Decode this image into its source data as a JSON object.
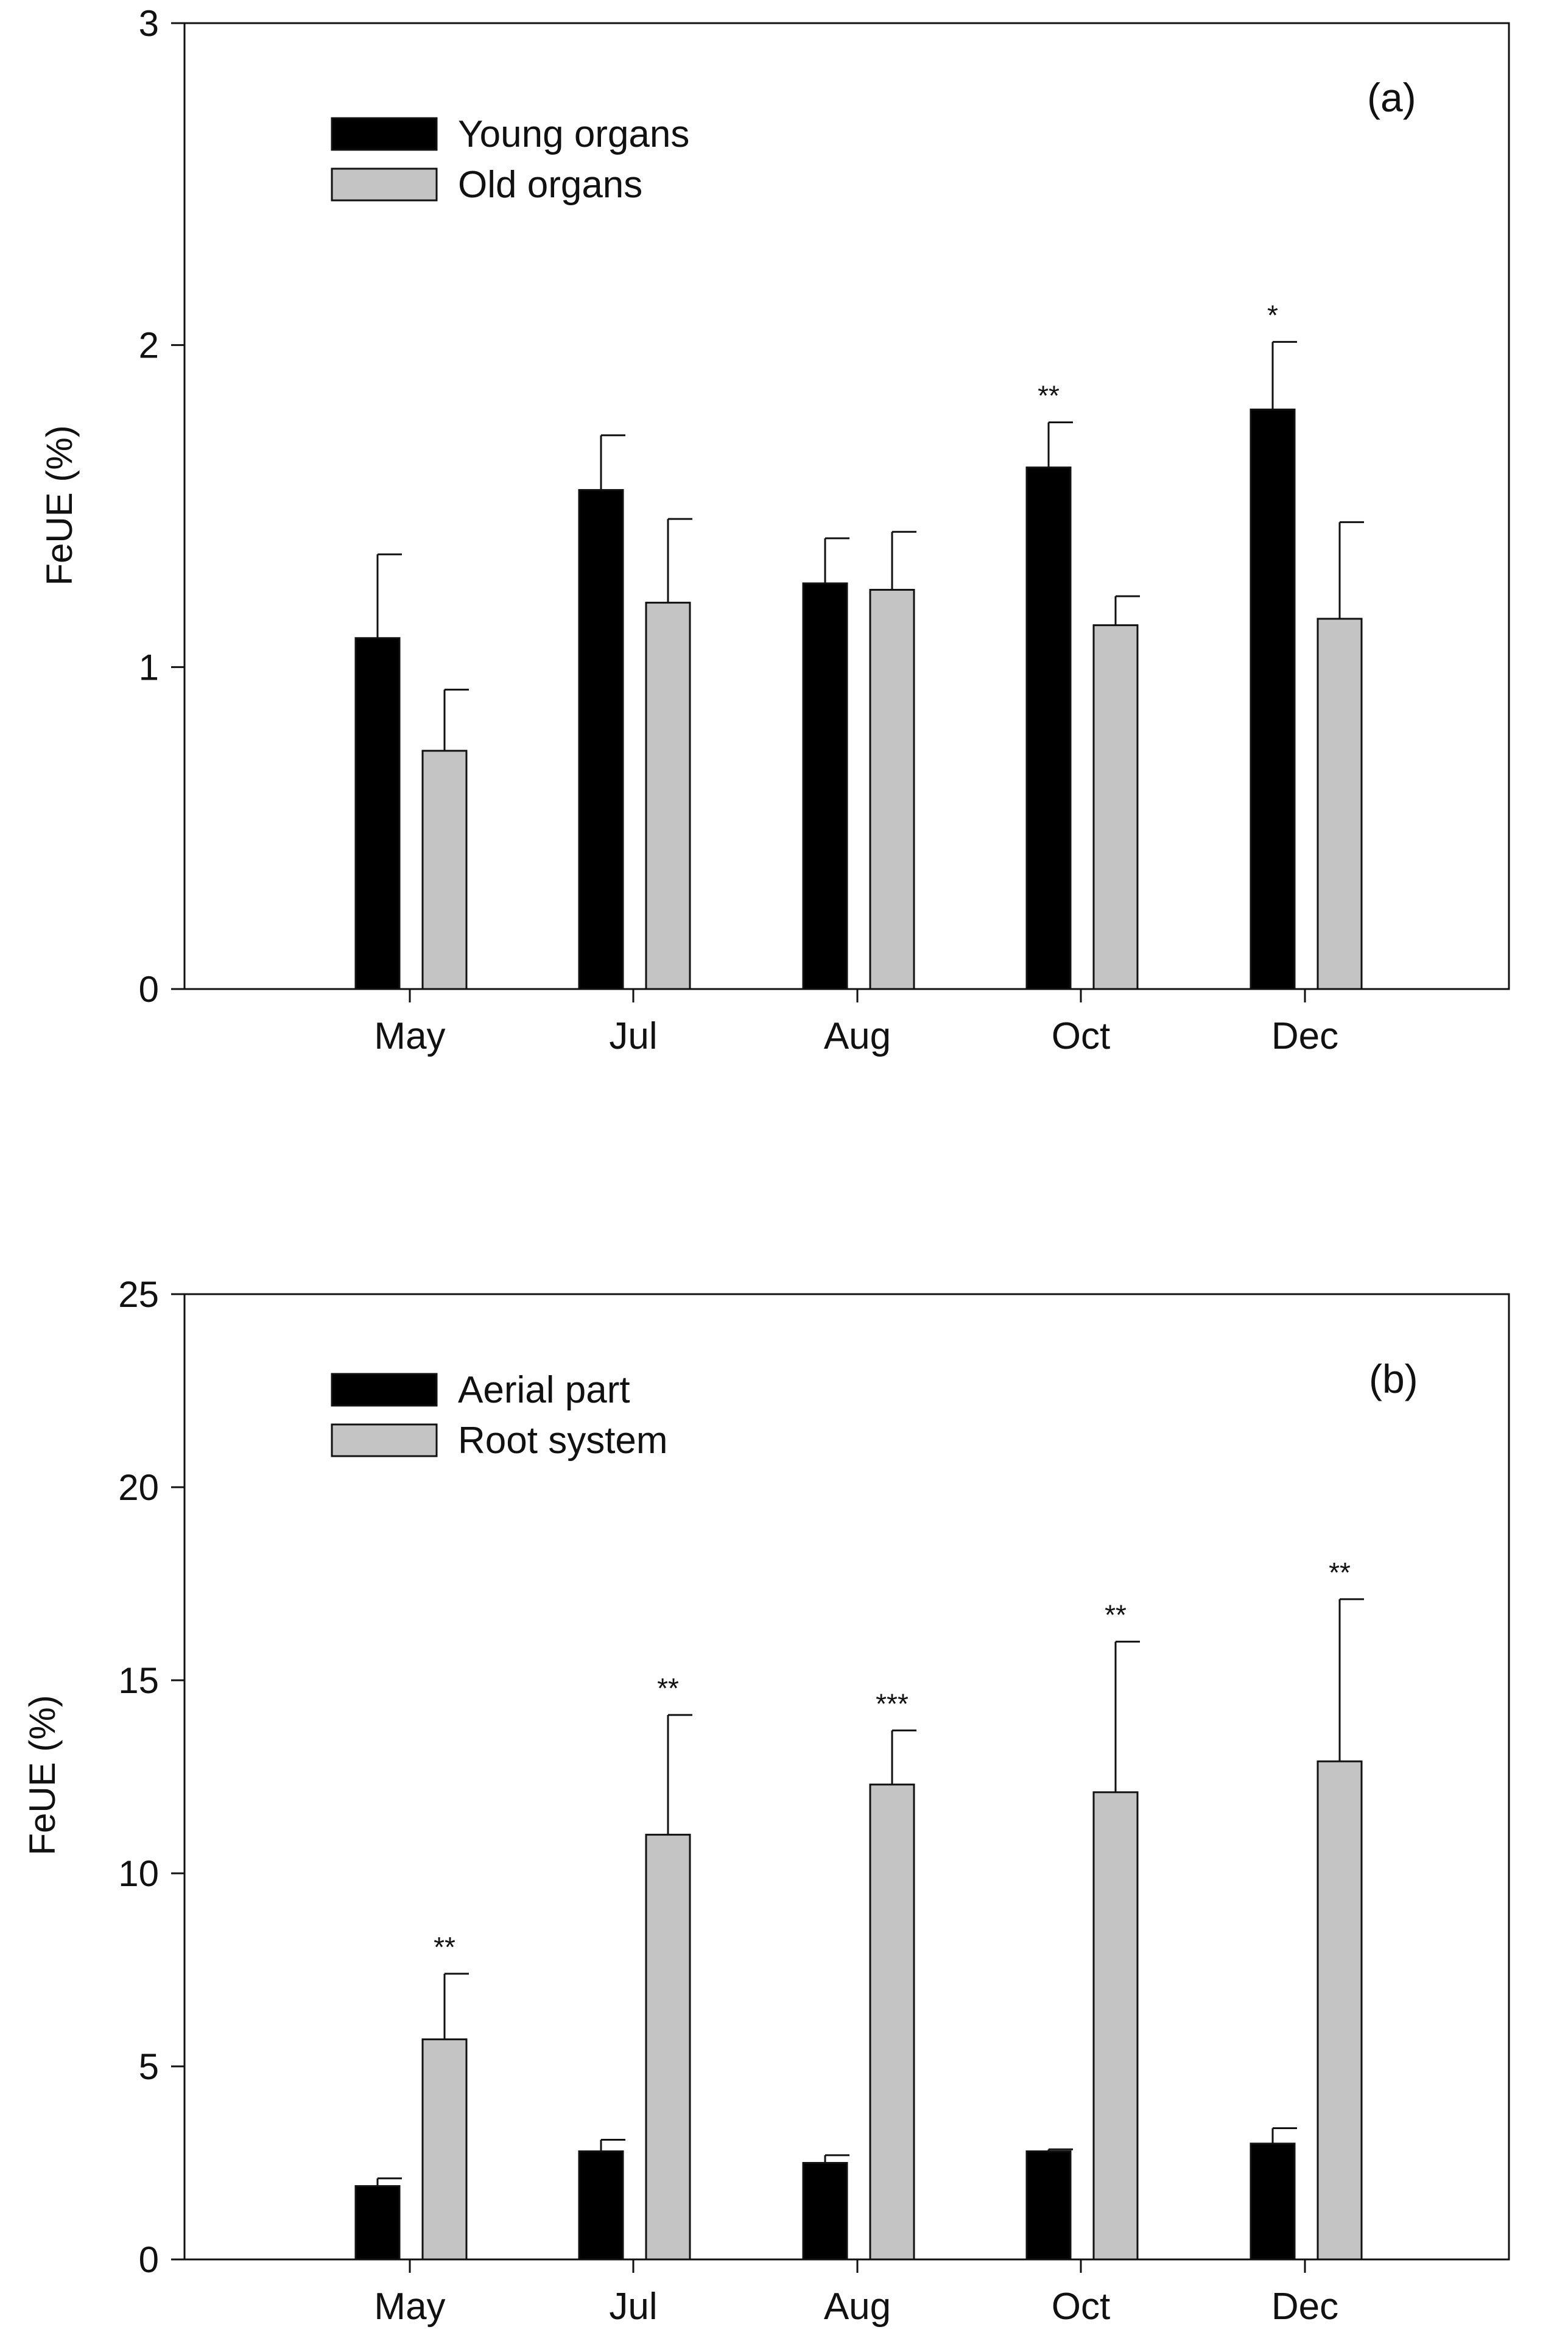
{
  "chart_data": [
    {
      "type": "bar",
      "panel_label": "(a)",
      "title": "",
      "xlabel": "",
      "ylabel": "FeUE (%)",
      "ylim": [
        0,
        3
      ],
      "yticks": [
        "0",
        "1",
        "2",
        "3"
      ],
      "legend_position": "top-left",
      "categories": [
        "May",
        "Jul",
        "Aug",
        "Oct",
        "Dec"
      ],
      "series": [
        {
          "name": "Young organs",
          "color": "#000000",
          "values": [
            1.09,
            1.55,
            1.26,
            1.62,
            1.8
          ],
          "errors": [
            0.26,
            0.17,
            0.14,
            0.14,
            0.21
          ]
        },
        {
          "name": "Old organs",
          "color": "#c4c4c4",
          "values": [
            0.74,
            1.2,
            1.24,
            1.13,
            1.15
          ],
          "errors": [
            0.19,
            0.26,
            0.18,
            0.09,
            0.3
          ]
        }
      ],
      "significance": [
        "",
        "",
        "",
        "**",
        "*"
      ]
    },
    {
      "type": "bar",
      "panel_label": "(b)",
      "title": "",
      "xlabel": "",
      "ylabel": "FeUE (%)",
      "ylim": [
        0,
        25
      ],
      "yticks": [
        "0",
        "5",
        "10",
        "15",
        "20",
        "25"
      ],
      "legend_position": "top-left",
      "categories": [
        "May",
        "Jul",
        "Aug",
        "Oct",
        "Dec"
      ],
      "series": [
        {
          "name": "Aerial part",
          "color": "#000000",
          "values": [
            1.9,
            2.8,
            2.5,
            2.8,
            3.0
          ],
          "errors": [
            0.2,
            0.3,
            0.2,
            0.05,
            0.4
          ]
        },
        {
          "name": "Root system",
          "color": "#c4c4c4",
          "values": [
            5.7,
            11.0,
            12.3,
            12.1,
            12.9
          ],
          "errors": [
            1.7,
            3.1,
            1.4,
            3.9,
            4.2
          ]
        }
      ],
      "significance": [
        "**",
        "**",
        "***",
        "**",
        "**"
      ]
    }
  ]
}
